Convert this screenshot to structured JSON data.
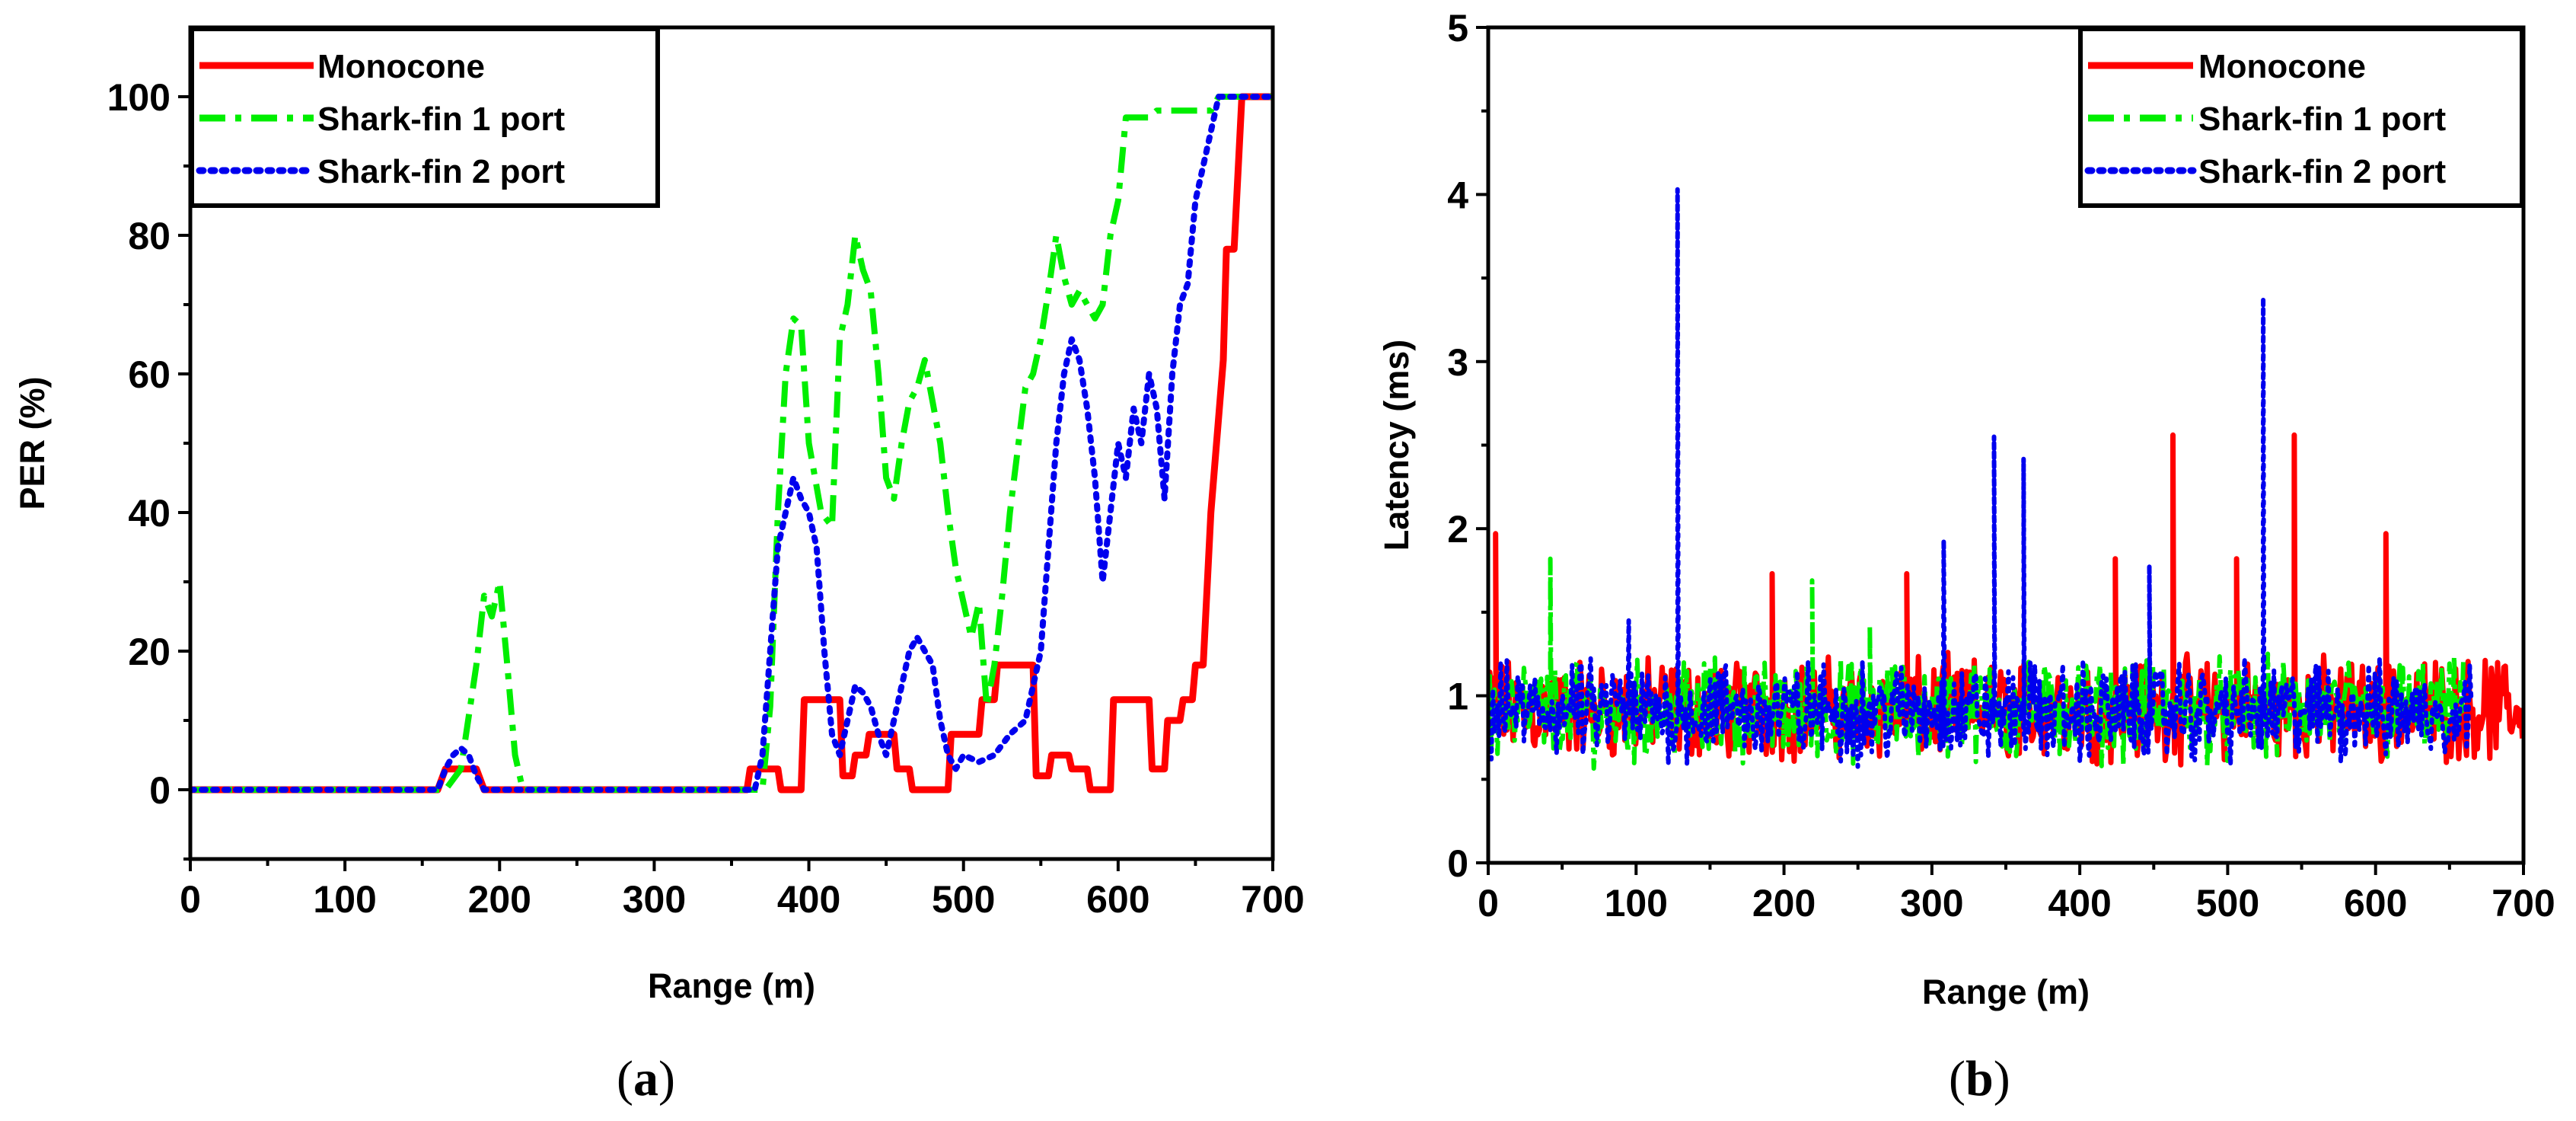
{
  "chart_data": [
    {
      "id": "a",
      "type": "line",
      "caption_open": "(",
      "caption_letter": "a",
      "caption_close": ")",
      "xlabel": "Range (m)",
      "ylabel": "PER (%)",
      "xlim": [
        0,
        700
      ],
      "ylim": [
        -10,
        110
      ],
      "xticks": [
        0,
        100,
        200,
        300,
        400,
        500,
        600,
        700
      ],
      "yticks": [
        0,
        20,
        40,
        60,
        80,
        100
      ],
      "grid": false,
      "legend_position": "top-left",
      "series": [
        {
          "name": "Monocone",
          "color": "#ff0000",
          "style": "solid",
          "points": [
            [
              0,
              0
            ],
            [
              160,
              0
            ],
            [
              165,
              3
            ],
            [
              185,
              3
            ],
            [
              190,
              0
            ],
            [
              360,
              0
            ],
            [
              362,
              3
            ],
            [
              380,
              3
            ],
            [
              382,
              0
            ],
            [
              395,
              0
            ],
            [
              397,
              13
            ],
            [
              420,
              13
            ],
            [
              422,
              2
            ],
            [
              428,
              2
            ],
            [
              430,
              5
            ],
            [
              437,
              5
            ],
            [
              439,
              8
            ],
            [
              455,
              8
            ],
            [
              457,
              3
            ],
            [
              465,
              3
            ],
            [
              467,
              0
            ],
            [
              490,
              0
            ],
            [
              492,
              8
            ],
            [
              510,
              8
            ],
            [
              512,
              13
            ],
            [
              520,
              13
            ],
            [
              522,
              18
            ],
            [
              545,
              18
            ],
            [
              547,
              2
            ],
            [
              555,
              2
            ],
            [
              557,
              5
            ],
            [
              568,
              5
            ],
            [
              570,
              3
            ],
            [
              580,
              3
            ],
            [
              582,
              0
            ],
            [
              595,
              0
            ],
            [
              597,
              13
            ],
            [
              620,
              13
            ],
            [
              622,
              3
            ],
            [
              630,
              3
            ],
            [
              632,
              10
            ],
            [
              640,
              10
            ],
            [
              642,
              13
            ],
            [
              648,
              13
            ],
            [
              650,
              18
            ],
            [
              655,
              18
            ],
            [
              660,
              40
            ],
            [
              668,
              62
            ],
            [
              670,
              78
            ],
            [
              675,
              78
            ],
            [
              680,
              100
            ],
            [
              700,
              100
            ]
          ]
        },
        {
          "name": "Shark-fin 1 port",
          "color": "#00ee00",
          "style": "dashdot",
          "points": [
            [
              0,
              0
            ],
            [
              165,
              0
            ],
            [
              175,
              3
            ],
            [
              185,
              18
            ],
            [
              190,
              28
            ],
            [
              195,
              25
            ],
            [
              200,
              30
            ],
            [
              205,
              18
            ],
            [
              210,
              5
            ],
            [
              215,
              0
            ],
            [
              370,
              0
            ],
            [
              375,
              12
            ],
            [
              380,
              40
            ],
            [
              385,
              60
            ],
            [
              390,
              68
            ],
            [
              395,
              67
            ],
            [
              400,
              50
            ],
            [
              408,
              40
            ],
            [
              415,
              38
            ],
            [
              420,
              65
            ],
            [
              425,
              70
            ],
            [
              430,
              80
            ],
            [
              435,
              75
            ],
            [
              440,
              72
            ],
            [
              445,
              60
            ],
            [
              450,
              45
            ],
            [
              455,
              42
            ],
            [
              460,
              50
            ],
            [
              465,
              56
            ],
            [
              470,
              58
            ],
            [
              475,
              62
            ],
            [
              480,
              56
            ],
            [
              485,
              50
            ],
            [
              490,
              40
            ],
            [
              495,
              32
            ],
            [
              500,
              27
            ],
            [
              505,
              22
            ],
            [
              510,
              27
            ],
            [
              515,
              12
            ],
            [
              520,
              18
            ],
            [
              525,
              28
            ],
            [
              530,
              40
            ],
            [
              540,
              58
            ],
            [
              545,
              60
            ],
            [
              550,
              65
            ],
            [
              555,
              72
            ],
            [
              560,
              80
            ],
            [
              565,
              74
            ],
            [
              570,
              70
            ],
            [
              575,
              72
            ],
            [
              580,
              70
            ],
            [
              585,
              68
            ],
            [
              590,
              70
            ],
            [
              595,
              80
            ],
            [
              600,
              85
            ],
            [
              605,
              97
            ],
            [
              620,
              97
            ],
            [
              625,
              98
            ],
            [
              660,
              98
            ],
            [
              665,
              100
            ],
            [
              700,
              100
            ]
          ]
        },
        {
          "name": "Shark-fin 2 port",
          "color": "#0000ee",
          "style": "dot",
          "points": [
            [
              0,
              0
            ],
            [
              160,
              0
            ],
            [
              165,
              3
            ],
            [
              170,
              5
            ],
            [
              175,
              6
            ],
            [
              180,
              5
            ],
            [
              185,
              2
            ],
            [
              190,
              0
            ],
            [
              365,
              0
            ],
            [
              370,
              5
            ],
            [
              375,
              20
            ],
            [
              380,
              35
            ],
            [
              385,
              40
            ],
            [
              390,
              45
            ],
            [
              395,
              42
            ],
            [
              400,
              40
            ],
            [
              405,
              35
            ],
            [
              410,
              20
            ],
            [
              415,
              8
            ],
            [
              420,
              5
            ],
            [
              425,
              10
            ],
            [
              430,
              15
            ],
            [
              435,
              14
            ],
            [
              440,
              12
            ],
            [
              445,
              8
            ],
            [
              450,
              5
            ],
            [
              455,
              10
            ],
            [
              460,
              15
            ],
            [
              465,
              20
            ],
            [
              470,
              22
            ],
            [
              475,
              20
            ],
            [
              480,
              18
            ],
            [
              485,
              10
            ],
            [
              490,
              5
            ],
            [
              495,
              3
            ],
            [
              500,
              5
            ],
            [
              510,
              4
            ],
            [
              520,
              5
            ],
            [
              530,
              8
            ],
            [
              540,
              10
            ],
            [
              550,
              20
            ],
            [
              555,
              35
            ],
            [
              560,
              50
            ],
            [
              565,
              60
            ],
            [
              570,
              65
            ],
            [
              575,
              62
            ],
            [
              580,
              55
            ],
            [
              585,
              45
            ],
            [
              590,
              30
            ],
            [
              595,
              40
            ],
            [
              600,
              50
            ],
            [
              605,
              45
            ],
            [
              610,
              55
            ],
            [
              615,
              50
            ],
            [
              620,
              60
            ],
            [
              625,
              55
            ],
            [
              630,
              42
            ],
            [
              635,
              60
            ],
            [
              640,
              70
            ],
            [
              645,
              73
            ],
            [
              650,
              85
            ],
            [
              655,
              90
            ],
            [
              660,
              95
            ],
            [
              665,
              100
            ],
            [
              700,
              100
            ]
          ]
        }
      ]
    },
    {
      "id": "b",
      "type": "line",
      "caption_open": "(",
      "caption_letter": "b",
      "caption_close": ")",
      "xlabel": "Range (m)",
      "ylabel": "Latency (ms)",
      "xlim": [
        0,
        700
      ],
      "ylim": [
        0,
        5
      ],
      "xticks": [
        0,
        100,
        200,
        300,
        400,
        500,
        600,
        700
      ],
      "yticks": [
        0,
        1,
        2,
        3,
        4,
        5
      ],
      "grid": false,
      "legend_position": "top-right",
      "noise_band": [
        0.62,
        1.22
      ],
      "series": [
        {
          "name": "Monocone",
          "color": "#ff0000",
          "style": "solid",
          "x_extent": [
            0,
            700
          ],
          "baseline": 0.92,
          "spikes": [
            [
              5,
              1.97
            ],
            [
              192,
              1.73
            ],
            [
              283,
              1.73
            ],
            [
              424,
              1.82
            ],
            [
              463,
              2.56
            ],
            [
              506,
              1.82
            ],
            [
              545,
              2.56
            ],
            [
              607,
              1.97
            ]
          ]
        },
        {
          "name": "Shark-fin 1 port",
          "color": "#00ee00",
          "style": "dashdot",
          "x_extent": [
            0,
            660
          ],
          "baseline": 0.9,
          "spikes": [
            [
              42,
              1.82
            ],
            [
              219,
              1.69
            ],
            [
              258,
              1.42
            ]
          ]
        },
        {
          "name": "Shark-fin 2 port",
          "color": "#0000ee",
          "style": "dot",
          "x_extent": [
            0,
            665
          ],
          "baseline": 0.88,
          "spikes": [
            [
              95,
              1.45
            ],
            [
              128,
              4.03
            ],
            [
              308,
              1.93
            ],
            [
              342,
              2.55
            ],
            [
              362,
              2.42
            ],
            [
              447,
              1.78
            ],
            [
              524,
              3.38
            ]
          ]
        }
      ]
    }
  ]
}
